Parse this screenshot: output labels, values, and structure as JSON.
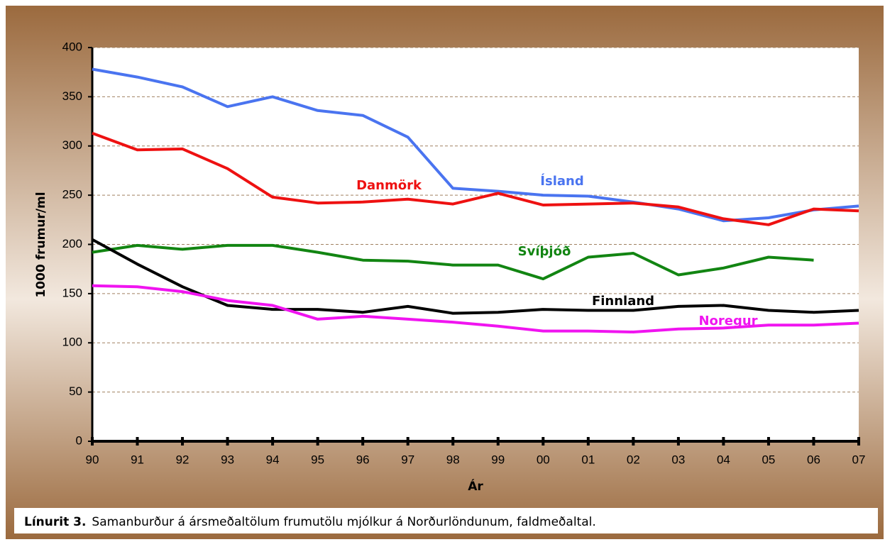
{
  "chart_data": {
    "type": "line",
    "categories": [
      "90",
      "91",
      "92",
      "93",
      "94",
      "95",
      "96",
      "97",
      "98",
      "99",
      "00",
      "01",
      "02",
      "03",
      "04",
      "05",
      "06",
      "07"
    ],
    "x_label": "Ár",
    "y_label": "1000 frumur/ml",
    "ylim": [
      0,
      400
    ],
    "yticks": [
      0,
      50,
      100,
      150,
      200,
      250,
      300,
      350,
      400
    ],
    "grid": true,
    "series": [
      {
        "name": "Ísland",
        "color": "#4a74f0",
        "values": [
          378,
          370,
          360,
          340,
          350,
          336,
          331,
          309,
          257,
          254,
          250,
          249,
          243,
          236,
          224,
          227,
          235,
          239
        ]
      },
      {
        "name": "Danmörk",
        "color": "#ee1111",
        "values": [
          313,
          296,
          297,
          277,
          248,
          242,
          243,
          246,
          241,
          252,
          240,
          241,
          242,
          238,
          226,
          220,
          236,
          234
        ]
      },
      {
        "name": "Svíþjóð",
        "color": "#128512",
        "values": [
          192,
          199,
          195,
          199,
          199,
          192,
          184,
          183,
          179,
          179,
          165,
          187,
          191,
          169,
          176,
          187,
          184,
          null
        ]
      },
      {
        "name": "Finnland",
        "color": "#000000",
        "values": [
          205,
          180,
          157,
          138,
          134,
          134,
          131,
          137,
          130,
          131,
          134,
          133,
          133,
          137,
          138,
          133,
          131,
          133
        ]
      },
      {
        "name": "Noregur",
        "color": "#f014f0",
        "values": [
          158,
          157,
          152,
          143,
          138,
          124,
          127,
          124,
          121,
          117,
          112,
          112,
          111,
          114,
          115,
          118,
          118,
          120
        ]
      }
    ]
  },
  "caption": {
    "label": "Línurit 3.",
    "text": "Samanburður á ársmeðaltölum frumutölu mjólkur á Norðurlöndunum, faldmeðaltal."
  }
}
